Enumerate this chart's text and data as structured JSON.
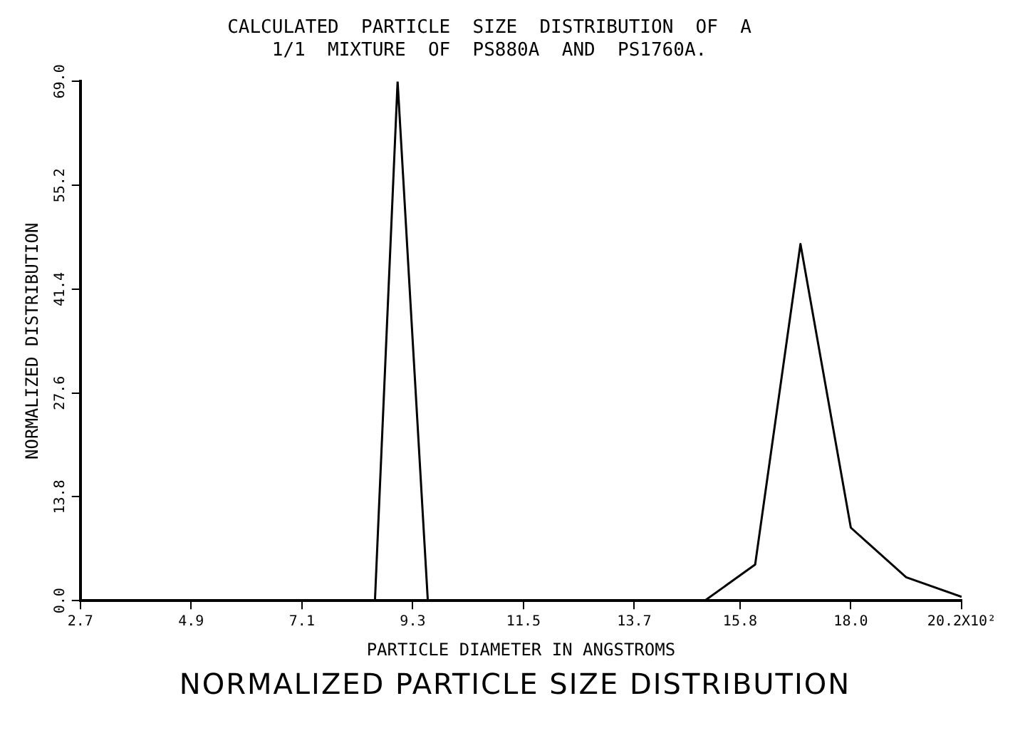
{
  "chart_data": {
    "type": "line",
    "title": "CALCULATED  PARTICLE  SIZE  DISTRIBUTION  OF  A\n1/1  MIXTURE  OF  PS880A  AND  PS1760A.",
    "xlabel": "PARTICLE DIAMETER IN ANGSTROMS",
    "ylabel": "NORMALIZED DISTRIBUTION",
    "annotations": [
      "NORMALIZED PARTICLE SIZE DISTRIBUTION"
    ],
    "x": [
      2.7,
      8.55,
      9.0,
      9.6,
      15.1,
      16.1,
      17.0,
      18.0,
      19.1,
      20.2
    ],
    "series": [
      {
        "color": "#000000",
        "values": [
          0,
          0,
          69,
          0,
          0,
          4.8,
          47.4,
          9.7,
          3.1,
          0.5
        ]
      }
    ],
    "xlim": [
      2.7,
      20.2
    ],
    "xticks": [
      2.7,
      4.9,
      7.1,
      9.3,
      11.5,
      13.7,
      15.8,
      {
        "value": 18,
        "label": "18.0"
      },
      {
        "value": 20.2,
        "label": "20.2X10²"
      }
    ],
    "ylim": [
      0,
      69
    ],
    "yticks": [
      {
        "value": 0,
        "label": "0.0"
      },
      13.8,
      27.6,
      41.4,
      55.2,
      {
        "value": 69,
        "label": "69.0"
      }
    ],
    "grid": false,
    "legend": false,
    "marker": "none",
    "line_style": "solid"
  }
}
